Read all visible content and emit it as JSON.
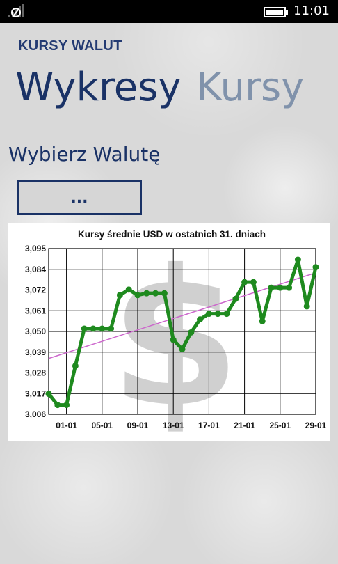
{
  "status_bar": {
    "time": "11:01",
    "signal_icon": "signal-icon",
    "battery_icon": "battery-icon"
  },
  "app": {
    "title": "KURSY WALUT"
  },
  "pivot": {
    "tabs": [
      {
        "label": "Wykresy",
        "active": true
      },
      {
        "label": "Kursy",
        "active": false
      }
    ]
  },
  "currency_picker": {
    "label": "Wybierz Walutę",
    "value": "..."
  },
  "colors": {
    "accent": "#1a3266",
    "series": "#1e8a1e",
    "trend": "#cc66cc",
    "watermark": "#c8c8c8"
  },
  "chart_data": {
    "type": "line",
    "title": "Kursy średnie USD w ostatnich 31. dniach",
    "xlabel": "",
    "ylabel": "",
    "ylim": [
      3.006,
      3.095
    ],
    "yticks": [
      "3,095",
      "3,084",
      "3,072",
      "3,061",
      "3,050",
      "3,039",
      "3,028",
      "3,017",
      "3,006"
    ],
    "xticks": [
      "01-01",
      "05-01",
      "09-01",
      "13-01",
      "17-01",
      "21-01",
      "25-01",
      "29-01"
    ],
    "grid": true,
    "legend": "none",
    "watermark": "$",
    "x": [
      "30-12",
      "31-12",
      "01-01",
      "02-01",
      "03-01",
      "04-01",
      "05-01",
      "06-01",
      "07-01",
      "08-01",
      "09-01",
      "10-01",
      "11-01",
      "12-01",
      "13-01",
      "14-01",
      "15-01",
      "16-01",
      "17-01",
      "18-01",
      "19-01",
      "20-01",
      "21-01",
      "22-01",
      "23-01",
      "24-01",
      "25-01",
      "26-01",
      "27-01",
      "28-01",
      "29-01"
    ],
    "series": [
      {
        "values": [
          3.017,
          3.011,
          3.011,
          3.032,
          3.052,
          3.052,
          3.052,
          3.052,
          3.07,
          3.073,
          3.07,
          3.071,
          3.071,
          3.071,
          3.046,
          3.041,
          3.05,
          3.057,
          3.06,
          3.06,
          3.06,
          3.068,
          3.077,
          3.077,
          3.056,
          3.074,
          3.074,
          3.074,
          3.089,
          3.064,
          3.085
        ]
      }
    ],
    "trendline": {
      "start": 3.036,
      "end": 3.082
    }
  }
}
